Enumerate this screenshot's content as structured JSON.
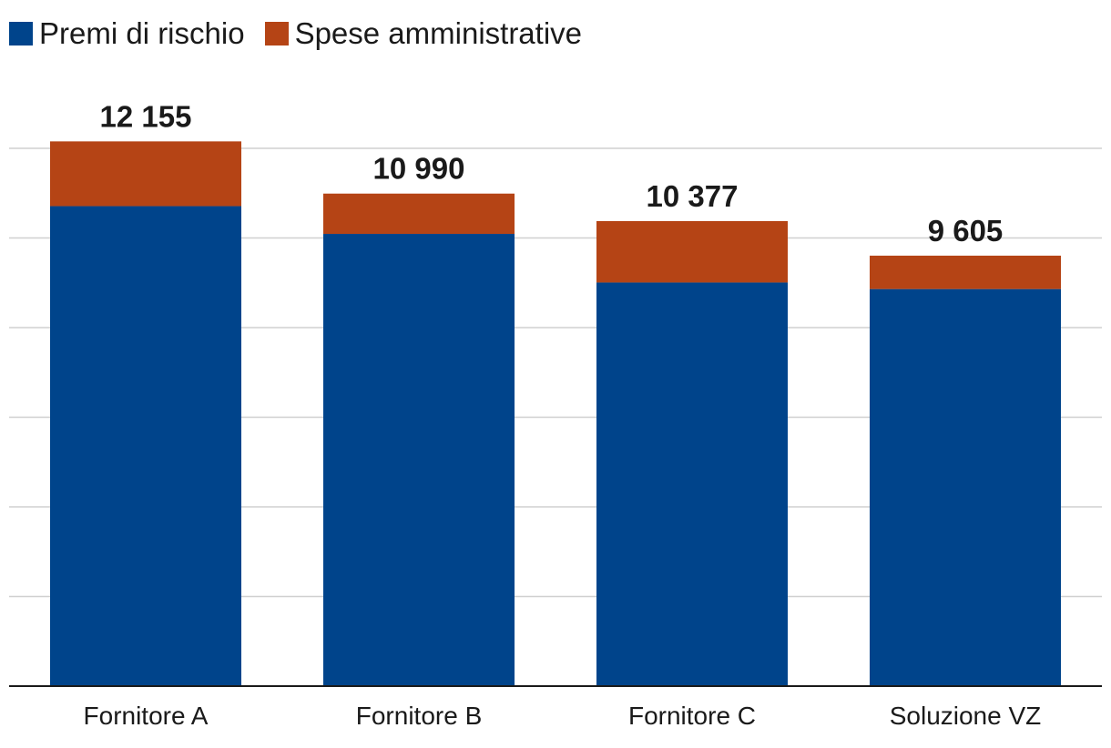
{
  "chart_data": {
    "type": "bar",
    "stacked": true,
    "categories": [
      "Fornitore A",
      "Fornitore B",
      "Fornitore C",
      "Soluzione VZ"
    ],
    "series": [
      {
        "name": "Premi di rischio",
        "color": "#00448b",
        "values": [
          10710,
          10091,
          9006,
          8860
        ]
      },
      {
        "name": "Spese amministrative",
        "color": "#b54415",
        "values": [
          1445,
          899,
          1371,
          745
        ]
      }
    ],
    "totals": [
      12155,
      10990,
      10377,
      9605
    ],
    "total_labels": [
      "12 155",
      "10 990",
      "10 377",
      "9 605"
    ],
    "ylim": [
      0,
      12000
    ],
    "y_gridlines": [
      2000,
      4000,
      6000,
      8000,
      10000,
      12000
    ],
    "grid": true,
    "legend_position": "top-left",
    "title": "",
    "xlabel": "",
    "ylabel": ""
  }
}
